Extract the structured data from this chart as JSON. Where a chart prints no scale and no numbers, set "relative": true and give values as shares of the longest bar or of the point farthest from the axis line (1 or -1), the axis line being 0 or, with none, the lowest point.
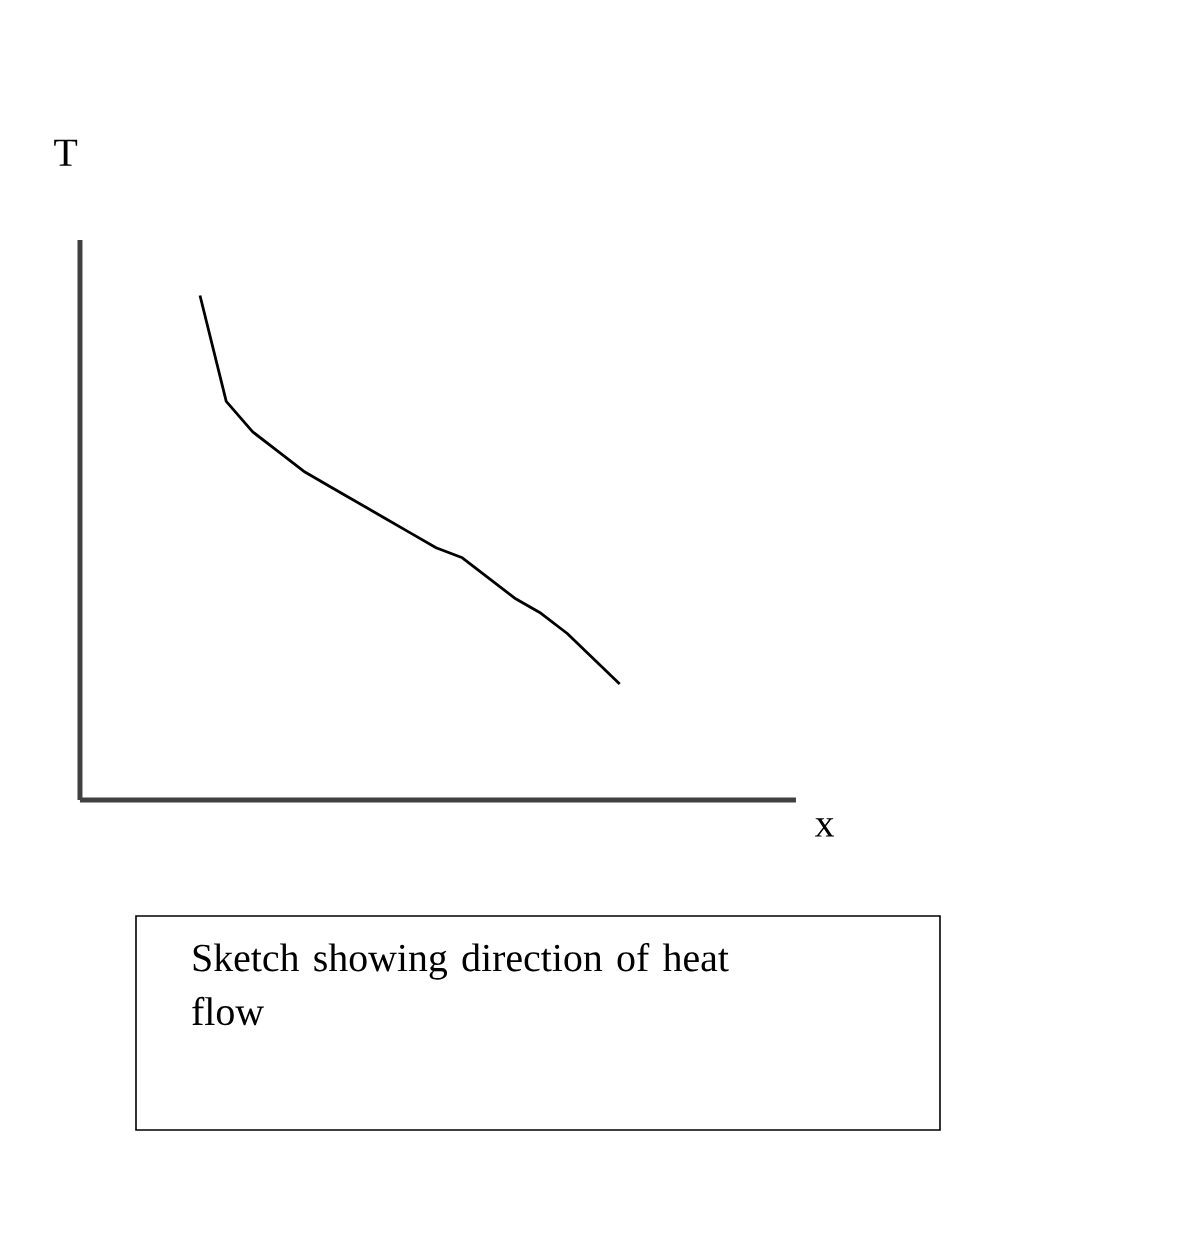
{
  "chart_data": {
    "type": "line",
    "relative": true,
    "xlabel": "x",
    "ylabel": "T",
    "categories": [
      null,
      null,
      null,
      null,
      null,
      null,
      null,
      null,
      null,
      null,
      null,
      null,
      null,
      null,
      null,
      null,
      null
    ],
    "values": [
      1,
      0.79,
      0.73,
      0.69,
      0.65,
      0.62,
      0.59,
      0.56,
      0.53,
      0.5,
      0.48,
      0.44,
      0.4,
      0.37,
      0.33,
      0.28,
      0.23
    ],
    "color": "#000000",
    "annotations": [
      "Sketch showing direction of heat flow"
    ]
  }
}
